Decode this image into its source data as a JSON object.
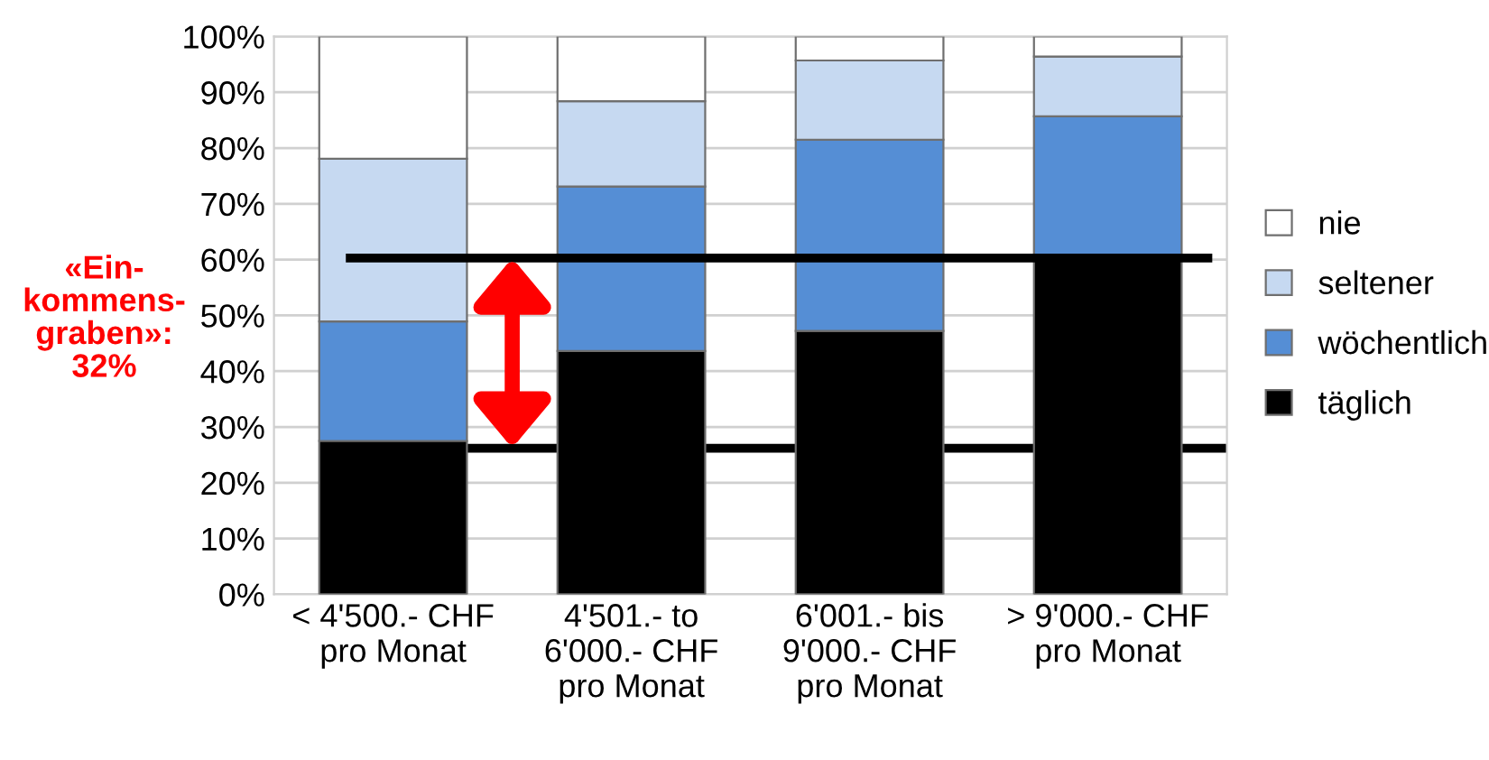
{
  "chart_data": {
    "type": "bar",
    "stacked": true,
    "categories": [
      "< 4'500.- CHF\npro Monat",
      "4'501.- to\n6'000.- CHF\npro Monat",
      "6'001.- bis\n9'000.- CHF\npro Monat",
      "> 9'000.- CHF\npro Monat"
    ],
    "series": [
      {
        "name": "täglich",
        "color": "#000000",
        "values": [
          27.5,
          43.6,
          47.2,
          60.3
        ]
      },
      {
        "name": "wöchentlich",
        "color": "#558ed5",
        "values": [
          21.4,
          29.5,
          34.3,
          25.4
        ]
      },
      {
        "name": "seltener",
        "color": "#c6d9f1",
        "values": [
          29.2,
          15.3,
          14.2,
          10.7
        ]
      },
      {
        "name": "nie",
        "color": "#ffffff",
        "values": [
          21.9,
          11.6,
          4.3,
          3.6
        ]
      }
    ],
    "ylim": [
      0,
      100
    ],
    "yticks": [
      {
        "value": 0,
        "label": "0%"
      },
      {
        "value": 10,
        "label": "10%"
      },
      {
        "value": 20,
        "label": "20%"
      },
      {
        "value": 30,
        "label": "30%"
      },
      {
        "value": 40,
        "label": "40%"
      },
      {
        "value": 50,
        "label": "50%"
      },
      {
        "value": 60,
        "label": "60%"
      },
      {
        "value": 70,
        "label": "70%"
      },
      {
        "value": 80,
        "label": "80%"
      },
      {
        "value": 90,
        "label": "90%"
      },
      {
        "value": 100,
        "label": "100%"
      }
    ],
    "grid": "y",
    "legend": "right",
    "ref_lines": [
      {
        "axis": "y",
        "value": 60.3,
        "color": "#000000"
      },
      {
        "axis": "y",
        "value": 26.2,
        "color": "#000000"
      }
    ],
    "annotations": [
      "«Ein-\nkommens-\ngraben»:\n32%"
    ]
  }
}
